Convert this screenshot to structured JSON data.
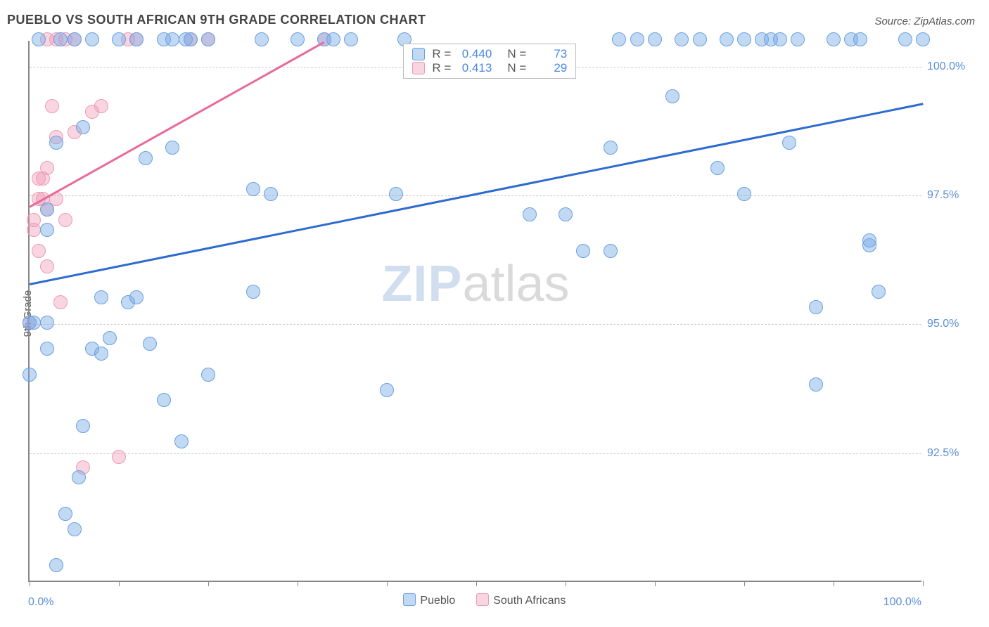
{
  "title": "PUEBLO VS SOUTH AFRICAN 9TH GRADE CORRELATION CHART",
  "source": "Source: ZipAtlas.com",
  "y_axis_label": "9th Grade",
  "watermark": {
    "part1": "ZIP",
    "part2": "atlas"
  },
  "chart": {
    "type": "scatter",
    "background_color": "#ffffff",
    "grid_color": "#cccccc",
    "axis_color": "#888888",
    "xlim": [
      0,
      100
    ],
    "ylim": [
      90,
      100.5
    ],
    "y_ticks": [
      {
        "value": 92.5,
        "label": "92.5%"
      },
      {
        "value": 95.0,
        "label": "95.0%"
      },
      {
        "value": 97.5,
        "label": "97.5%"
      },
      {
        "value": 100.0,
        "label": "100.0%"
      }
    ],
    "x_minor_ticks": [
      0,
      10,
      20,
      30,
      40,
      50,
      60,
      70,
      80,
      90,
      100
    ],
    "x_labels": [
      {
        "value": 0,
        "label": "0.0%",
        "align": "left"
      },
      {
        "value": 100,
        "label": "100.0%",
        "align": "right"
      }
    ],
    "tick_label_color": "#5b8fd6",
    "tick_label_fontsize": 16
  },
  "series": {
    "pueblo": {
      "label": "Pueblo",
      "fill": "rgba(120,170,230,0.45)",
      "stroke": "#6aa0df",
      "trend_color": "#2d6bd1",
      "R": "0.440",
      "N": "73",
      "trend": {
        "x1": 0,
        "y1": 95.8,
        "x2": 100,
        "y2": 99.3
      },
      "points": [
        [
          0,
          94.0
        ],
        [
          0,
          95.0
        ],
        [
          0.5,
          95.0
        ],
        [
          1,
          100.5
        ],
        [
          2,
          95.0
        ],
        [
          2,
          94.5
        ],
        [
          2,
          96.8
        ],
        [
          2,
          97.2
        ],
        [
          3,
          90.3
        ],
        [
          3,
          98.5
        ],
        [
          3.5,
          100.5
        ],
        [
          4,
          91.3
        ],
        [
          5,
          91.0
        ],
        [
          5,
          100.5
        ],
        [
          5.5,
          92.0
        ],
        [
          6,
          98.8
        ],
        [
          6,
          93.0
        ],
        [
          7,
          100.5
        ],
        [
          7,
          94.5
        ],
        [
          8,
          95.5
        ],
        [
          8,
          94.4
        ],
        [
          9,
          94.7
        ],
        [
          10,
          100.5
        ],
        [
          11,
          95.4
        ],
        [
          12,
          100.5
        ],
        [
          12,
          95.5
        ],
        [
          13,
          98.2
        ],
        [
          13.5,
          94.6
        ],
        [
          15,
          100.5
        ],
        [
          15,
          93.5
        ],
        [
          16,
          98.4
        ],
        [
          16,
          100.5
        ],
        [
          17,
          92.7
        ],
        [
          17.5,
          100.5
        ],
        [
          18,
          100.5
        ],
        [
          20,
          100.5
        ],
        [
          20,
          94.0
        ],
        [
          25,
          95.6
        ],
        [
          25,
          97.6
        ],
        [
          26,
          100.5
        ],
        [
          27,
          97.5
        ],
        [
          30,
          100.5
        ],
        [
          33,
          100.5
        ],
        [
          34,
          100.5
        ],
        [
          36,
          100.5
        ],
        [
          40,
          93.7
        ],
        [
          41,
          97.5
        ],
        [
          42,
          100.5
        ],
        [
          56,
          97.1
        ],
        [
          60,
          97.1
        ],
        [
          62,
          96.4
        ],
        [
          65,
          98.4
        ],
        [
          65,
          96.4
        ],
        [
          66,
          100.5
        ],
        [
          68,
          100.5
        ],
        [
          70,
          100.5
        ],
        [
          72,
          99.4
        ],
        [
          73,
          100.5
        ],
        [
          75,
          100.5
        ],
        [
          77,
          98.0
        ],
        [
          78,
          100.5
        ],
        [
          80,
          100.5
        ],
        [
          80,
          97.5
        ],
        [
          82,
          100.5
        ],
        [
          83,
          100.5
        ],
        [
          84,
          100.5
        ],
        [
          85,
          98.5
        ],
        [
          86,
          100.5
        ],
        [
          88,
          93.8
        ],
        [
          88,
          95.3
        ],
        [
          90,
          100.5
        ],
        [
          92,
          100.5
        ],
        [
          93,
          100.5
        ],
        [
          94,
          96.5
        ],
        [
          94,
          96.6
        ],
        [
          95,
          95.6
        ],
        [
          98,
          100.5
        ],
        [
          100,
          100.5
        ]
      ]
    },
    "south_africans": {
      "label": "South Africans",
      "fill": "rgba(240,150,180,0.40)",
      "stroke": "#ec9bb6",
      "trend_color": "#e86a9a",
      "R": "0.413",
      "N": "29",
      "trend": {
        "x1": 0,
        "y1": 97.3,
        "x2": 33,
        "y2": 100.5
      },
      "points": [
        [
          0,
          95.0
        ],
        [
          0.5,
          96.8
        ],
        [
          0.5,
          97.0
        ],
        [
          1,
          96.4
        ],
        [
          1,
          97.4
        ],
        [
          1,
          97.8
        ],
        [
          1.5,
          97.4
        ],
        [
          1.5,
          97.8
        ],
        [
          2,
          96.1
        ],
        [
          2,
          97.2
        ],
        [
          2,
          98.0
        ],
        [
          2,
          100.5
        ],
        [
          2.5,
          99.2
        ],
        [
          3,
          97.4
        ],
        [
          3,
          98.6
        ],
        [
          3,
          100.5
        ],
        [
          3.5,
          95.4
        ],
        [
          4,
          97.0
        ],
        [
          4,
          100.5
        ],
        [
          5,
          100.5
        ],
        [
          5,
          98.7
        ],
        [
          6,
          92.2
        ],
        [
          7,
          99.1
        ],
        [
          8,
          99.2
        ],
        [
          10,
          92.4
        ],
        [
          11,
          100.5
        ],
        [
          12,
          100.5
        ],
        [
          18,
          100.5
        ],
        [
          20,
          100.5
        ],
        [
          33,
          100.5
        ]
      ]
    }
  },
  "legend_top": {
    "rows": [
      {
        "swatch": "pueblo",
        "R_label": "R =",
        "R_val": "0.440",
        "N_label": "N =",
        "N_val": "73"
      },
      {
        "swatch": "south_africans",
        "R_label": "R =",
        "R_val": "0.413",
        "N_label": "N =",
        "N_val": "29"
      }
    ]
  },
  "legend_bottom": {
    "items": [
      {
        "swatch": "pueblo",
        "label": "Pueblo"
      },
      {
        "swatch": "south_africans",
        "label": "South Africans"
      }
    ]
  }
}
